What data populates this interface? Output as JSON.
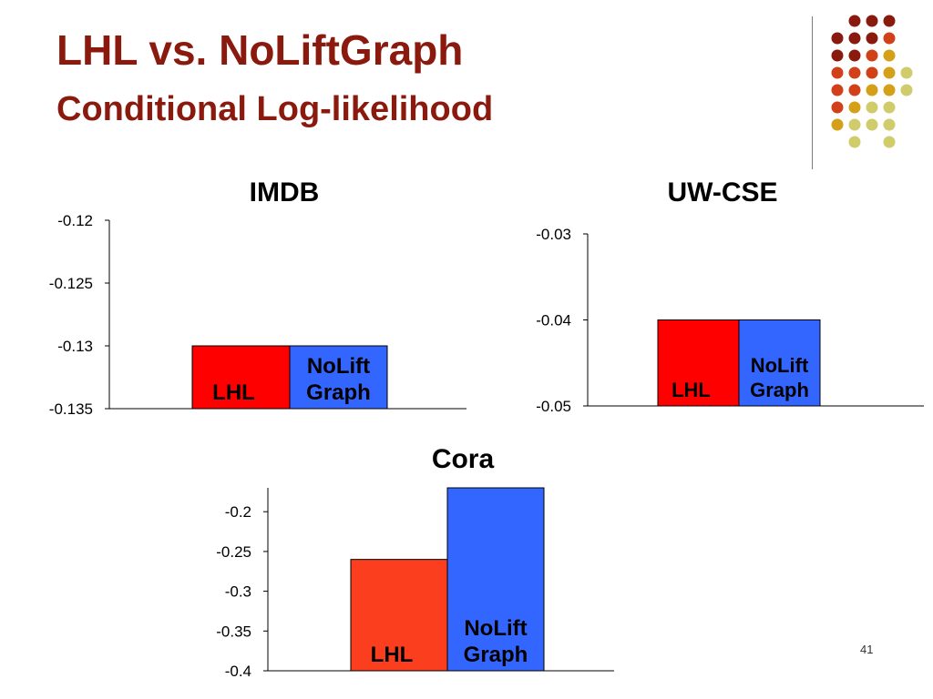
{
  "slide": {
    "title": "LHL vs. NoLiftGraph",
    "subtitle": "Conditional Log-likelihood",
    "page_number": "41"
  },
  "colors": {
    "title": "#8B1A0E",
    "lhl_imdb_uwcse": "#FF0000",
    "lhl_cora": "#FA3E1E",
    "noliftgraph": "#3366FF",
    "decor_dots": [
      "#8B1A0E",
      "#D2401A",
      "#D4A017",
      "#D0CC6C"
    ]
  },
  "chart_data": [
    {
      "type": "bar",
      "title": "IMDB",
      "categories": [
        "LHL",
        "NoLiftGraph"
      ],
      "bar_labels": [
        [
          "LHL"
        ],
        [
          "NoLift",
          "Graph"
        ]
      ],
      "values": [
        -0.13,
        -0.13
      ],
      "ylim": [
        -0.135,
        -0.12
      ],
      "yticks": [
        "-0.12",
        "-0.125",
        "-0.13",
        "-0.135"
      ],
      "ytick_values": [
        -0.12,
        -0.125,
        -0.13,
        -0.135
      ],
      "grid": false
    },
    {
      "type": "bar",
      "title": "UW-CSE",
      "categories": [
        "LHL",
        "NoLiftGraph"
      ],
      "bar_labels": [
        [
          "LHL"
        ],
        [
          "NoLift",
          "Graph"
        ]
      ],
      "values": [
        -0.04,
        -0.04
      ],
      "ylim": [
        -0.05,
        -0.03
      ],
      "yticks": [
        "-0.03",
        "-0.04",
        "-0.05"
      ],
      "ytick_values": [
        -0.03,
        -0.04,
        -0.05
      ],
      "grid": false
    },
    {
      "type": "bar",
      "title": "Cora",
      "categories": [
        "LHL",
        "NoLiftGraph"
      ],
      "bar_labels": [
        [
          "LHL"
        ],
        [
          "NoLift",
          "Graph"
        ]
      ],
      "values": [
        -0.26,
        -0.17
      ],
      "ylim": [
        -0.4,
        -0.17
      ],
      "yticks": [
        "-0.2",
        "-0.25",
        "-0.3",
        "-0.35",
        "-0.4"
      ],
      "ytick_values": [
        -0.2,
        -0.25,
        -0.3,
        -0.35,
        -0.4
      ],
      "grid": false
    }
  ]
}
